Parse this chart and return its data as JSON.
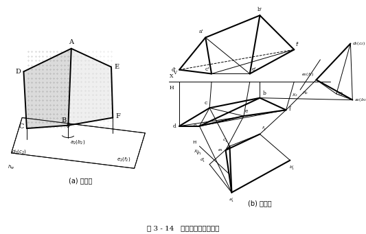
{
  "title": "图 3 - 14   求相交两平面的夹角",
  "subtitle_a": "(a) 直观图",
  "subtitle_b": "(b) 投影图",
  "bg_color": "#ffffff",
  "fig_width": 5.33,
  "fig_height": 3.41,
  "dpi": 100
}
